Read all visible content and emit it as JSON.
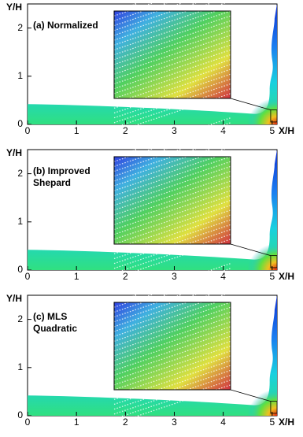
{
  "chart_data": [
    {
      "type": "contour",
      "title_lines": [
        "(a) Normalized"
      ],
      "xlabel": "X/H",
      "ylabel": "Y/H",
      "xlim": [
        0,
        5.1
      ],
      "ylim": [
        0,
        2.5
      ],
      "xticks": [
        0,
        1,
        2,
        3,
        4,
        5
      ],
      "yticks": [
        0,
        1,
        2
      ]
    },
    {
      "type": "contour",
      "title_lines": [
        "(b) Improved",
        "Shepard"
      ],
      "xlabel": "X/H",
      "ylabel": "Y/H",
      "xlim": [
        0,
        5.1
      ],
      "ylim": [
        0,
        2.5
      ],
      "xticks": [
        0,
        1,
        2,
        3,
        4,
        5
      ],
      "yticks": [
        0,
        1,
        2
      ]
    },
    {
      "type": "contour",
      "title_lines": [
        "(c) MLS",
        "Quadratic"
      ],
      "xlabel": "X/H",
      "ylabel": "Y/H",
      "xlim": [
        0,
        5.1
      ],
      "ylim": [
        0,
        2.5
      ],
      "xticks": [
        0,
        1,
        2,
        3,
        4,
        5
      ],
      "yticks": [
        0,
        1,
        2
      ]
    }
  ]
}
